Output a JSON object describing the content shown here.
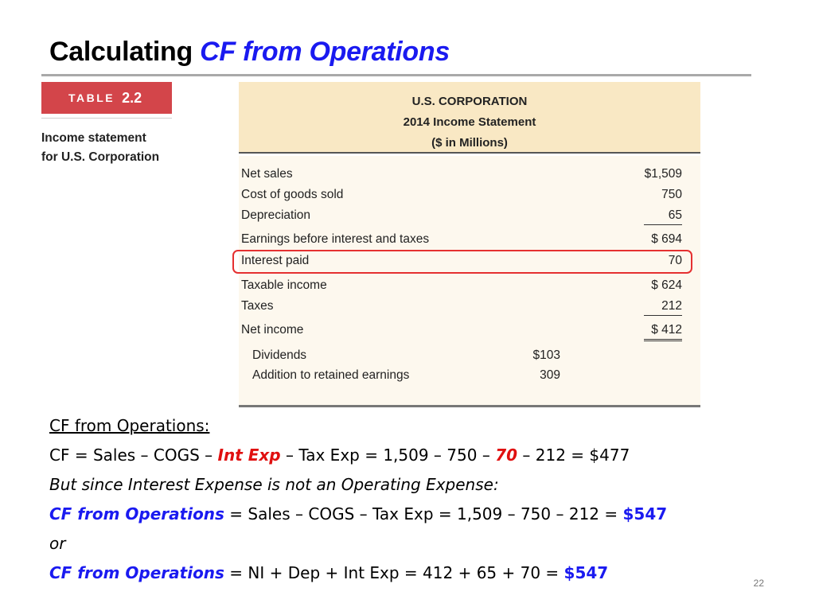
{
  "title": {
    "prefix": "Calculating",
    "accent": "CF from Operations"
  },
  "badge": {
    "label": "TABLE",
    "number": "2.2"
  },
  "caption": {
    "line1": "Income statement",
    "line2": "for U.S. Corporation"
  },
  "statement": {
    "header": [
      "U.S. CORPORATION",
      "2014 Income Statement",
      "($ in Millions)"
    ],
    "rows": [
      {
        "label": "Net sales",
        "value": "$1,509"
      },
      {
        "label": "Cost of goods sold",
        "value": "750"
      },
      {
        "label": "Depreciation",
        "value": "65"
      },
      {
        "label": "Earnings before interest and taxes",
        "value": "$  694"
      },
      {
        "label": "Interest paid",
        "value": "70"
      },
      {
        "label": "Taxable income",
        "value": "$  624"
      },
      {
        "label": "Taxes",
        "value": "212"
      },
      {
        "label": "Net income",
        "value": "$  412"
      }
    ],
    "subrows": [
      {
        "label": "Dividends",
        "value": "$103"
      },
      {
        "label": "Addition to retained earnings",
        "value": "309"
      }
    ]
  },
  "ops": {
    "heading": "CF from Operations:",
    "line1": {
      "a": "CF = Sales – COGS – ",
      "b": "Int Exp",
      "c": " – Tax Exp = 1,509 – 750 – ",
      "d": "70",
      "e": " – 212 = $477"
    },
    "line2": "But since Interest Expense is not an Operating Expense:",
    "line3": {
      "a": "CF from Operations",
      "b": " = Sales – COGS – Tax Exp = 1,509 – 750 – 212 = ",
      "c": "$547"
    },
    "line4": "or",
    "line5": {
      "a": "CF from Operations",
      "b": " = NI + Dep + Int Exp = 412 + 65 + 70 = ",
      "c": "$547"
    }
  },
  "page_number": "22",
  "colors": {
    "accent_blue": "#1a1af0",
    "highlight_red": "#e53030",
    "badge_red": "#d3454a",
    "header_tan": "#f9e8c4"
  }
}
